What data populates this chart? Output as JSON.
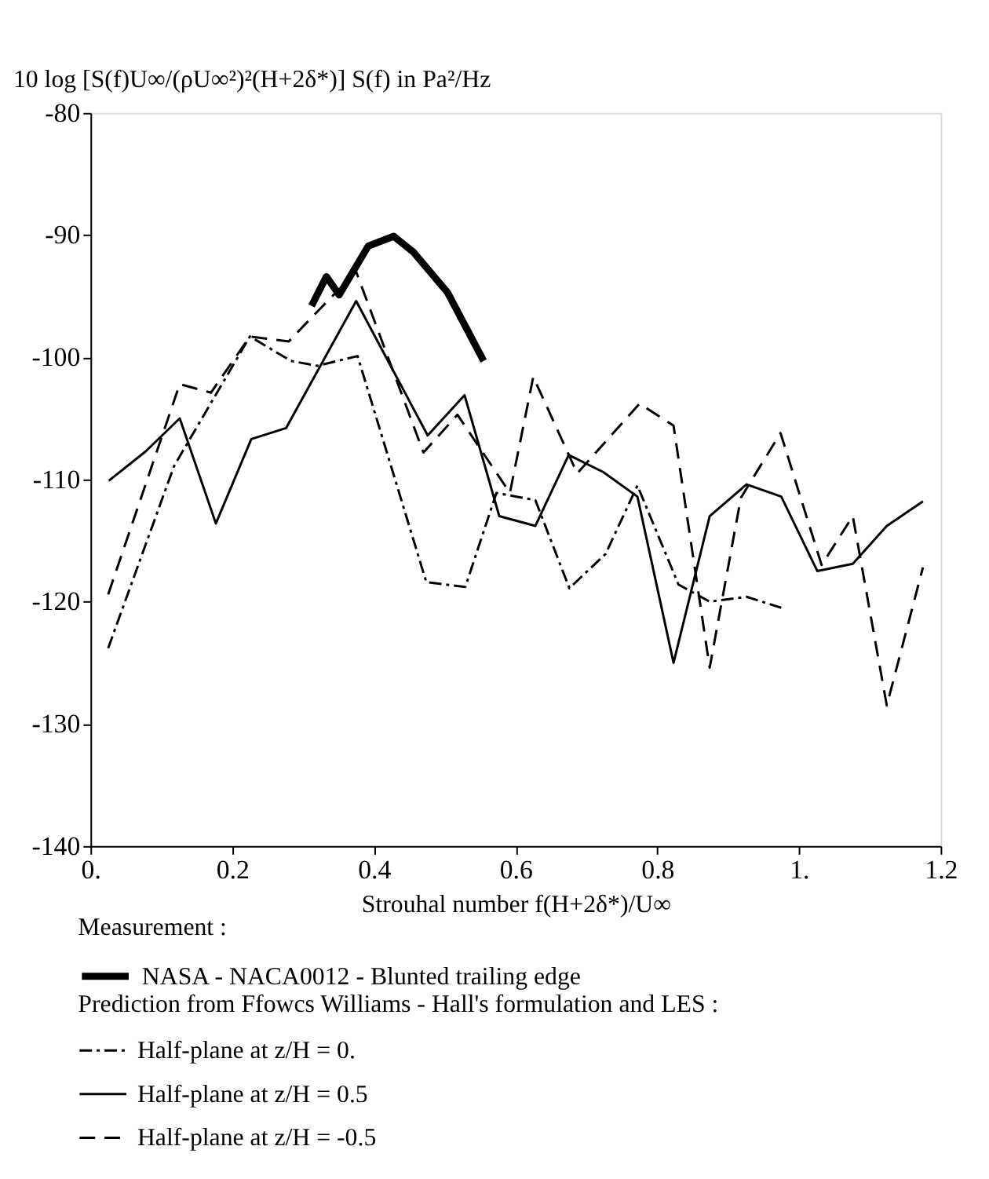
{
  "chart_data": {
    "type": "line",
    "ylabel": "10 log [S(f)U∞/(ρU∞²)²(H+2δ*)]   S(f) in Pa²/Hz",
    "xlabel": "Strouhal number f(H+2δ*)/U∞",
    "xlim": [
      0,
      1.2
    ],
    "ylim": [
      -140,
      -80
    ],
    "xticks": [
      {
        "value": 0,
        "label": "0."
      },
      0.2,
      0.4,
      0.6,
      0.8,
      {
        "value": 1,
        "label": "1."
      },
      1.2
    ],
    "yticks": [
      -140,
      -130,
      -120,
      -110,
      -100,
      -90,
      -80
    ],
    "grid": false,
    "legend": "bottom",
    "annotations": [
      "Measurement :",
      "Prediction from Ffowcs Williams - Hall's formulation and LES :"
    ],
    "series": [
      {
        "name": "NASA - NACA0012 - Blunted trailing edge",
        "color": "#000000",
        "line_style": "solid",
        "x": [
          0.312,
          0.333,
          0.351,
          0.392,
          0.428,
          0.456,
          0.504,
          0.555
        ],
        "values": [
          -95.8,
          -93.4,
          -94.9,
          -90.9,
          -90.1,
          -91.4,
          -94.7,
          -100.3
        ]
      },
      {
        "name": "Half-plane at z/H = 0.",
        "color": "#000000",
        "line_style": "dashdot",
        "x": [
          0.025,
          0.118,
          0.225,
          0.283,
          0.32,
          0.377,
          0.474,
          0.529,
          0.573,
          0.628,
          0.676,
          0.727,
          0.772,
          0.83,
          0.874,
          0.926,
          0.975
        ],
        "values": [
          -123.8,
          -108.9,
          -98.3,
          -100.3,
          -100.7,
          -99.9,
          -118.4,
          -118.8,
          -111.1,
          -111.7,
          -118.9,
          -116.1,
          -110.5,
          -118.6,
          -120.0,
          -119.6,
          -120.5
        ]
      },
      {
        "name": "Half-plane at z/H = 0.5",
        "color": "#000000",
        "line_style": "solid",
        "x": [
          0.026,
          0.078,
          0.126,
          0.177,
          0.227,
          0.276,
          0.375,
          0.476,
          0.528,
          0.577,
          0.628,
          0.675,
          0.724,
          0.772,
          0.823,
          0.874,
          0.926,
          0.975,
          1.026,
          1.076,
          1.124,
          1.175
        ],
        "values": [
          -110.1,
          -107.7,
          -105.0,
          -113.6,
          -106.7,
          -105.8,
          -95.4,
          -106.4,
          -103.1,
          -113.0,
          -113.8,
          -108.0,
          -109.4,
          -111.4,
          -125.0,
          -113.0,
          -110.4,
          -111.4,
          -117.5,
          -116.9,
          -113.8,
          -111.8
        ]
      },
      {
        "name": "Half-plane at z/H = -0.5",
        "color": "#000000",
        "line_style": "dashed",
        "x": [
          0.025,
          0.126,
          0.17,
          0.225,
          0.28,
          0.313,
          0.375,
          0.47,
          0.518,
          0.592,
          0.625,
          0.687,
          0.775,
          0.823,
          0.874,
          0.918,
          0.974,
          1.032,
          1.076,
          1.124,
          1.175
        ],
        "values": [
          -119.4,
          -102.2,
          -102.9,
          -98.3,
          -98.7,
          -96.7,
          -93.0,
          -107.8,
          -104.7,
          -111.1,
          -101.6,
          -109.5,
          -103.8,
          -105.6,
          -125.4,
          -111.5,
          -106.2,
          -117.0,
          -113.0,
          -128.5,
          -117.2
        ]
      }
    ]
  }
}
